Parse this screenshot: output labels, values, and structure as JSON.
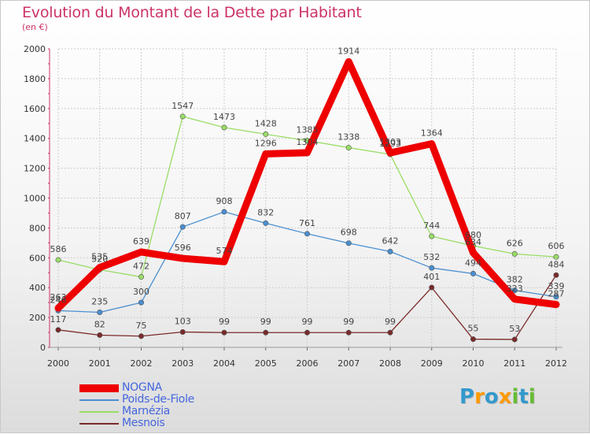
{
  "title": "Evolution du Montant de la Dette par Habitant",
  "subtitle": "(en €)",
  "logo": {
    "text": "Proxiti",
    "letter_colors": [
      "#3399cc",
      "#ff9900",
      "#3399cc",
      "#ff9900",
      "#66bb33",
      "#3399cc",
      "#66bb33"
    ]
  },
  "chart_data": {
    "type": "line",
    "x": [
      "2000",
      "2001",
      "2002",
      "2003",
      "2004",
      "2005",
      "2006",
      "2007",
      "2008",
      "2009",
      "2010",
      "2011",
      "2012"
    ],
    "ylim": [
      0,
      2000
    ],
    "yticks": [
      "0",
      "200",
      "400",
      "600",
      "800",
      "1000",
      "1200",
      "1400",
      "1600",
      "1800",
      "2000"
    ],
    "grid": true,
    "legend_position": "bottom-left",
    "series": [
      {
        "name": "Mesnois",
        "color": "#7b2a2a",
        "values": [
          117,
          82,
          75,
          103,
          99,
          99,
          99,
          99,
          99,
          401,
          55,
          53,
          484
        ],
        "labels": [
          "117",
          "82",
          "75",
          "103",
          "99",
          "99",
          "99",
          "99",
          "99",
          "401",
          "55",
          "53",
          "484"
        ]
      },
      {
        "name": "Poids-de-Fiole",
        "color": "#4a8fd0",
        "values": [
          246,
          235,
          300,
          807,
          908,
          832,
          761,
          698,
          642,
          532,
          494,
          382,
          339
        ],
        "labels": [
          "246",
          "235",
          "300",
          "807",
          "908",
          "832",
          "761",
          "698",
          "642",
          "532",
          "494",
          "382",
          "339"
        ]
      },
      {
        "name": "Marnézia",
        "color": "#99dd66",
        "values": [
          586,
          520,
          472,
          1547,
          1473,
          1428,
          1385,
          1338,
          1293,
          744,
          680,
          626,
          606
        ],
        "labels": [
          "586",
          "520",
          "472",
          "1547",
          "1473",
          "1428",
          "1385",
          "1338",
          "1293",
          "744",
          "680",
          "626",
          "606"
        ]
      },
      {
        "name": "NOGNA",
        "color": "#ee0000",
        "values": [
          263,
          535,
          639,
          596,
          574,
          1296,
          1304,
          1914,
          1303,
          1364,
          634,
          323,
          287
        ],
        "labels": [
          "263",
          "535",
          "639",
          "596",
          "574",
          "1296",
          "1304",
          "1914",
          "1303",
          "1364",
          "634",
          "323",
          "287"
        ]
      }
    ]
  },
  "legend": [
    "NOGNA",
    "Poids-de-Fiole",
    "Marnézia",
    "Mesnois"
  ]
}
